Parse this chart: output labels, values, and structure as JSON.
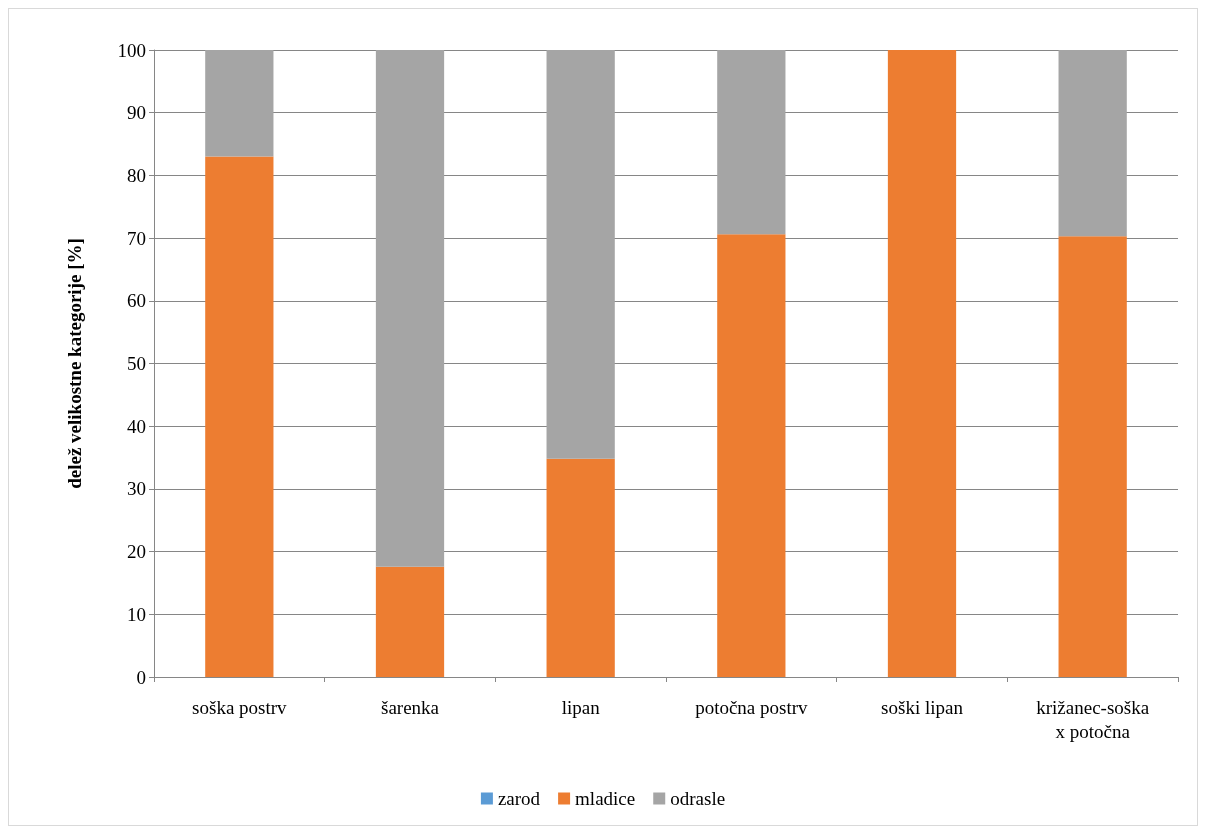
{
  "chart_data": {
    "type": "bar",
    "stacked": true,
    "ylabel": "delež velikostne kategorije [%]",
    "categories": [
      "soška postrv",
      "šarenka",
      "lipan",
      "potočna postrv",
      "soški lipan",
      "križanec-soška\nx potočna"
    ],
    "series": [
      {
        "name": "zarod",
        "color": "#5b9bd5",
        "values": [
          0,
          0,
          0,
          0,
          0,
          0
        ]
      },
      {
        "name": "mladice",
        "color": "#ed7d31",
        "values": [
          83,
          17.6,
          34.8,
          70.6,
          100,
          70.3
        ]
      },
      {
        "name": "odrasle",
        "color": "#a5a5a5",
        "values": [
          17,
          82.4,
          65.2,
          29.4,
          0,
          29.7
        ]
      }
    ],
    "ylim": [
      0,
      100
    ],
    "yticks": [
      0,
      10,
      20,
      30,
      40,
      50,
      60,
      70,
      80,
      90,
      100
    ],
    "grid": "y",
    "legend": "bottom"
  }
}
